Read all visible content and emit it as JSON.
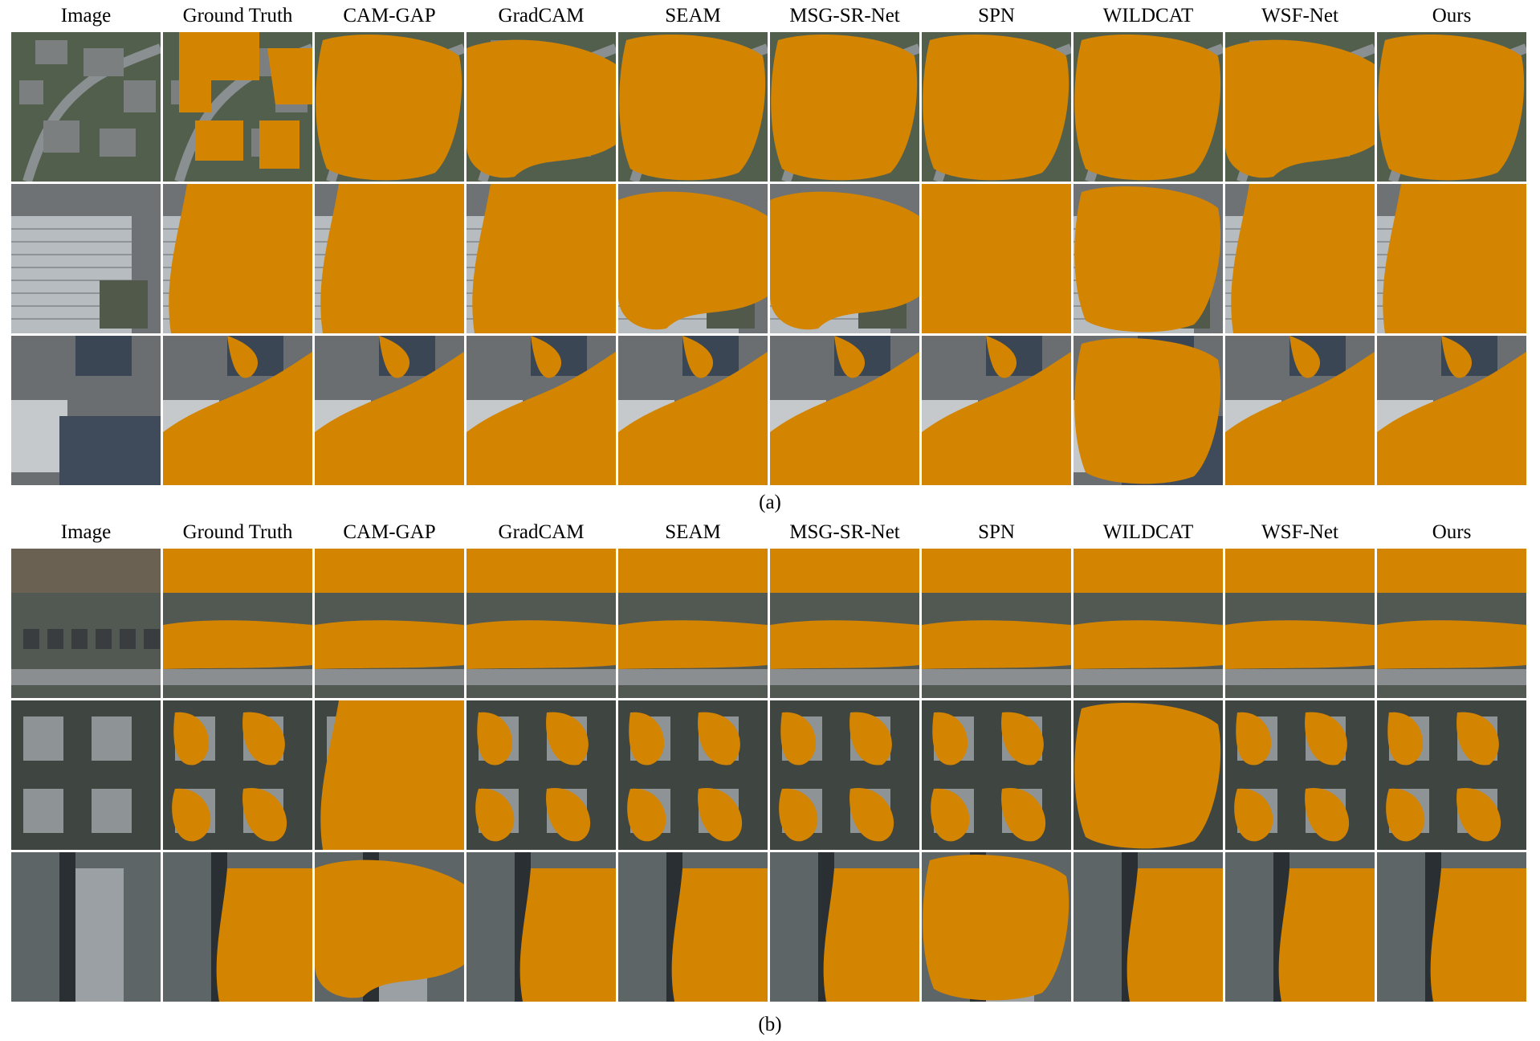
{
  "colors": {
    "mask": "#D38400",
    "background_aerial": "#5f6467",
    "divider": "#ffffff"
  },
  "columns": [
    "Image",
    "Ground Truth",
    "CAM-GAP",
    "GradCAM",
    "SEAM",
    "MSG-SR-Net",
    "SPN",
    "WILDCAT",
    "WSF-Net",
    "Ours"
  ],
  "panels": [
    {
      "id": "a",
      "caption": "(a)",
      "rows": 3
    },
    {
      "id": "b",
      "caption": "(b)",
      "rows": 3
    }
  ]
}
